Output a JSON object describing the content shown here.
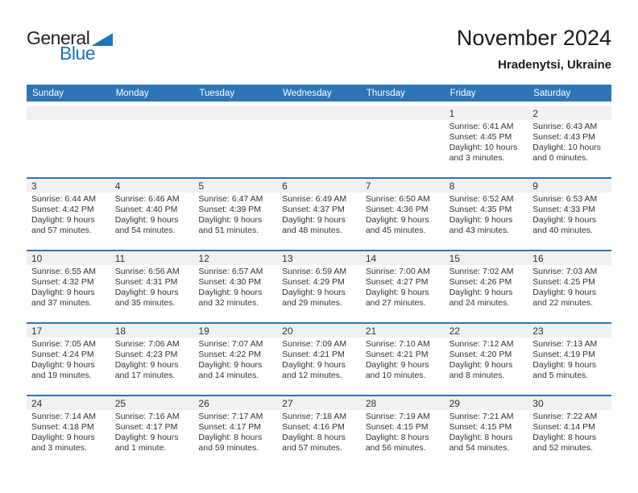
{
  "logo": {
    "general": "General",
    "blue": "Blue"
  },
  "header": {
    "title": "November 2024",
    "subtitle": "Hradenytsi, Ukraine"
  },
  "colors": {
    "header_blue": "#2e75b5",
    "row_line_blue": "#2e75b5",
    "band_gray": "#f1f1f1",
    "logo_blue": "#1b75bb",
    "text_dark": "#333333"
  },
  "weekdays": [
    "Sunday",
    "Monday",
    "Tuesday",
    "Wednesday",
    "Thursday",
    "Friday",
    "Saturday"
  ],
  "weeks": [
    [
      null,
      null,
      null,
      null,
      null,
      {
        "day": "1",
        "sunrise": "Sunrise: 6:41 AM",
        "sunset": "Sunset: 4:45 PM",
        "daylight": "Daylight: 10 hours and 3 minutes."
      },
      {
        "day": "2",
        "sunrise": "Sunrise: 6:43 AM",
        "sunset": "Sunset: 4:43 PM",
        "daylight": "Daylight: 10 hours and 0 minutes."
      }
    ],
    [
      {
        "day": "3",
        "sunrise": "Sunrise: 6:44 AM",
        "sunset": "Sunset: 4:42 PM",
        "daylight": "Daylight: 9 hours and 57 minutes."
      },
      {
        "day": "4",
        "sunrise": "Sunrise: 6:46 AM",
        "sunset": "Sunset: 4:40 PM",
        "daylight": "Daylight: 9 hours and 54 minutes."
      },
      {
        "day": "5",
        "sunrise": "Sunrise: 6:47 AM",
        "sunset": "Sunset: 4:39 PM",
        "daylight": "Daylight: 9 hours and 51 minutes."
      },
      {
        "day": "6",
        "sunrise": "Sunrise: 6:49 AM",
        "sunset": "Sunset: 4:37 PM",
        "daylight": "Daylight: 9 hours and 48 minutes."
      },
      {
        "day": "7",
        "sunrise": "Sunrise: 6:50 AM",
        "sunset": "Sunset: 4:36 PM",
        "daylight": "Daylight: 9 hours and 45 minutes."
      },
      {
        "day": "8",
        "sunrise": "Sunrise: 6:52 AM",
        "sunset": "Sunset: 4:35 PM",
        "daylight": "Daylight: 9 hours and 43 minutes."
      },
      {
        "day": "9",
        "sunrise": "Sunrise: 6:53 AM",
        "sunset": "Sunset: 4:33 PM",
        "daylight": "Daylight: 9 hours and 40 minutes."
      }
    ],
    [
      {
        "day": "10",
        "sunrise": "Sunrise: 6:55 AM",
        "sunset": "Sunset: 4:32 PM",
        "daylight": "Daylight: 9 hours and 37 minutes."
      },
      {
        "day": "11",
        "sunrise": "Sunrise: 6:56 AM",
        "sunset": "Sunset: 4:31 PM",
        "daylight": "Daylight: 9 hours and 35 minutes."
      },
      {
        "day": "12",
        "sunrise": "Sunrise: 6:57 AM",
        "sunset": "Sunset: 4:30 PM",
        "daylight": "Daylight: 9 hours and 32 minutes."
      },
      {
        "day": "13",
        "sunrise": "Sunrise: 6:59 AM",
        "sunset": "Sunset: 4:29 PM",
        "daylight": "Daylight: 9 hours and 29 minutes."
      },
      {
        "day": "14",
        "sunrise": "Sunrise: 7:00 AM",
        "sunset": "Sunset: 4:27 PM",
        "daylight": "Daylight: 9 hours and 27 minutes."
      },
      {
        "day": "15",
        "sunrise": "Sunrise: 7:02 AM",
        "sunset": "Sunset: 4:26 PM",
        "daylight": "Daylight: 9 hours and 24 minutes."
      },
      {
        "day": "16",
        "sunrise": "Sunrise: 7:03 AM",
        "sunset": "Sunset: 4:25 PM",
        "daylight": "Daylight: 9 hours and 22 minutes."
      }
    ],
    [
      {
        "day": "17",
        "sunrise": "Sunrise: 7:05 AM",
        "sunset": "Sunset: 4:24 PM",
        "daylight": "Daylight: 9 hours and 19 minutes."
      },
      {
        "day": "18",
        "sunrise": "Sunrise: 7:06 AM",
        "sunset": "Sunset: 4:23 PM",
        "daylight": "Daylight: 9 hours and 17 minutes."
      },
      {
        "day": "19",
        "sunrise": "Sunrise: 7:07 AM",
        "sunset": "Sunset: 4:22 PM",
        "daylight": "Daylight: 9 hours and 14 minutes."
      },
      {
        "day": "20",
        "sunrise": "Sunrise: 7:09 AM",
        "sunset": "Sunset: 4:21 PM",
        "daylight": "Daylight: 9 hours and 12 minutes."
      },
      {
        "day": "21",
        "sunrise": "Sunrise: 7:10 AM",
        "sunset": "Sunset: 4:21 PM",
        "daylight": "Daylight: 9 hours and 10 minutes."
      },
      {
        "day": "22",
        "sunrise": "Sunrise: 7:12 AM",
        "sunset": "Sunset: 4:20 PM",
        "daylight": "Daylight: 9 hours and 8 minutes."
      },
      {
        "day": "23",
        "sunrise": "Sunrise: 7:13 AM",
        "sunset": "Sunset: 4:19 PM",
        "daylight": "Daylight: 9 hours and 5 minutes."
      }
    ],
    [
      {
        "day": "24",
        "sunrise": "Sunrise: 7:14 AM",
        "sunset": "Sunset: 4:18 PM",
        "daylight": "Daylight: 9 hours and 3 minutes."
      },
      {
        "day": "25",
        "sunrise": "Sunrise: 7:16 AM",
        "sunset": "Sunset: 4:17 PM",
        "daylight": "Daylight: 9 hours and 1 minute."
      },
      {
        "day": "26",
        "sunrise": "Sunrise: 7:17 AM",
        "sunset": "Sunset: 4:17 PM",
        "daylight": "Daylight: 8 hours and 59 minutes."
      },
      {
        "day": "27",
        "sunrise": "Sunrise: 7:18 AM",
        "sunset": "Sunset: 4:16 PM",
        "daylight": "Daylight: 8 hours and 57 minutes."
      },
      {
        "day": "28",
        "sunrise": "Sunrise: 7:19 AM",
        "sunset": "Sunset: 4:15 PM",
        "daylight": "Daylight: 8 hours and 56 minutes."
      },
      {
        "day": "29",
        "sunrise": "Sunrise: 7:21 AM",
        "sunset": "Sunset: 4:15 PM",
        "daylight": "Daylight: 8 hours and 54 minutes."
      },
      {
        "day": "30",
        "sunrise": "Sunrise: 7:22 AM",
        "sunset": "Sunset: 4:14 PM",
        "daylight": "Daylight: 8 hours and 52 minutes."
      }
    ]
  ]
}
